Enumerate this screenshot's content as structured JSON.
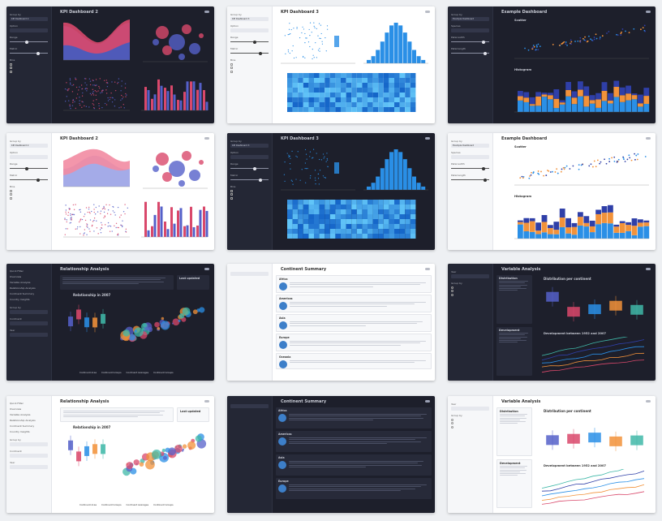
{
  "dashboards": [
    {
      "id": "kpi-dark",
      "theme": "dark",
      "title": "KPI Dashboard 2",
      "sidebar": [
        "Group by",
        "Option",
        "Range",
        "Metric",
        "Bins"
      ],
      "selects": [
        "KPI Dashboard 2"
      ]
    },
    {
      "id": "kpi3-light",
      "theme": "light",
      "title": "KPI Dashboard 3",
      "sidebar": [
        "Group by",
        "Option",
        "Range",
        "Metric",
        "Bins"
      ],
      "selects": [
        "KPI Dashboard 3"
      ]
    },
    {
      "id": "example-dark",
      "theme": "dark",
      "title": "Example Dashboard",
      "sidebar": [
        "Group by",
        "Species",
        "Petal width",
        "Petal length"
      ],
      "selects": [
        "Example Dashboard"
      ],
      "panels": [
        "Scatter",
        "Histogram"
      ]
    },
    {
      "id": "kpi-light",
      "theme": "light",
      "title": "KPI Dashboard 2",
      "sidebar": [
        "Group by",
        "Option",
        "Range",
        "Metric",
        "Bins"
      ],
      "selects": [
        "KPI Dashboard 2"
      ]
    },
    {
      "id": "kpi3-dark",
      "theme": "dark",
      "title": "KPI Dashboard 3",
      "sidebar": [
        "Group by",
        "Option",
        "Range",
        "Metric",
        "Bins"
      ],
      "selects": [
        "KPI Dashboard 3"
      ]
    },
    {
      "id": "example-light",
      "theme": "light",
      "title": "Example Dashboard",
      "sidebar": [
        "Group by",
        "Species",
        "Petal width",
        "Petal length"
      ],
      "selects": [
        "Example Dashboard"
      ],
      "panels": [
        "Scatter",
        "Histogram"
      ]
    },
    {
      "id": "rel-dark",
      "theme": "dark",
      "title": "Relationship Analysis",
      "nav": [
        "Quick Filter",
        "Overview",
        "Variable Analysis",
        "Relationship Analysis",
        "Continent Summary",
        "Country Insights"
      ],
      "sidebar": [
        "Group by",
        "Continent",
        "Year"
      ],
      "chart_title": "Relationship in 2007",
      "last_updated": "Last updated",
      "footer": [
        "Continent Area",
        "Continent Groups",
        "Continent Averages",
        "Continent Groups"
      ]
    },
    {
      "id": "summary-light",
      "theme": "light",
      "title": "Continent Summary",
      "continents": [
        "Africa",
        "Americas",
        "Asia",
        "Europe",
        "Oceania"
      ]
    },
    {
      "id": "var-dark",
      "theme": "dark",
      "title": "Variable Analysis",
      "sidebar": [
        "Year",
        "Group by"
      ],
      "cards": [
        "Distribution",
        "Development"
      ],
      "chart_titles": [
        "Distribution per continent",
        "Development between 1952 and 2007"
      ]
    },
    {
      "id": "rel-light",
      "theme": "light",
      "title": "Relationship Analysis",
      "nav": [
        "Quick Filter",
        "Overview",
        "Variable Analysis",
        "Relationship Analysis",
        "Continent Summary",
        "Country Insights"
      ],
      "sidebar": [
        "Group by",
        "Continent",
        "Year"
      ],
      "chart_title": "Relationship in 2007",
      "last_updated": "Last updated",
      "footer": [
        "Continent Area",
        "Continent Groups",
        "Continent Averages",
        "Continent Groups"
      ]
    },
    {
      "id": "summary-dark",
      "theme": "dark",
      "title": "Continent Summary",
      "continents": [
        "Africa",
        "Americas",
        "Asia",
        "Europe"
      ]
    },
    {
      "id": "var-light",
      "theme": "light",
      "title": "Variable Analysis",
      "sidebar": [
        "Year",
        "Group by"
      ],
      "cards": [
        "Distribution",
        "Development"
      ],
      "chart_titles": [
        "Distribution per continent",
        "Development between 1952 and 2007"
      ]
    }
  ],
  "colors": {
    "red": "#d9486b",
    "blue": "#5560c9",
    "skyblue": "#2a8fe6",
    "orange": "#f2923a",
    "navy": "#2f3fa8",
    "teal": "#3fb8a8"
  }
}
